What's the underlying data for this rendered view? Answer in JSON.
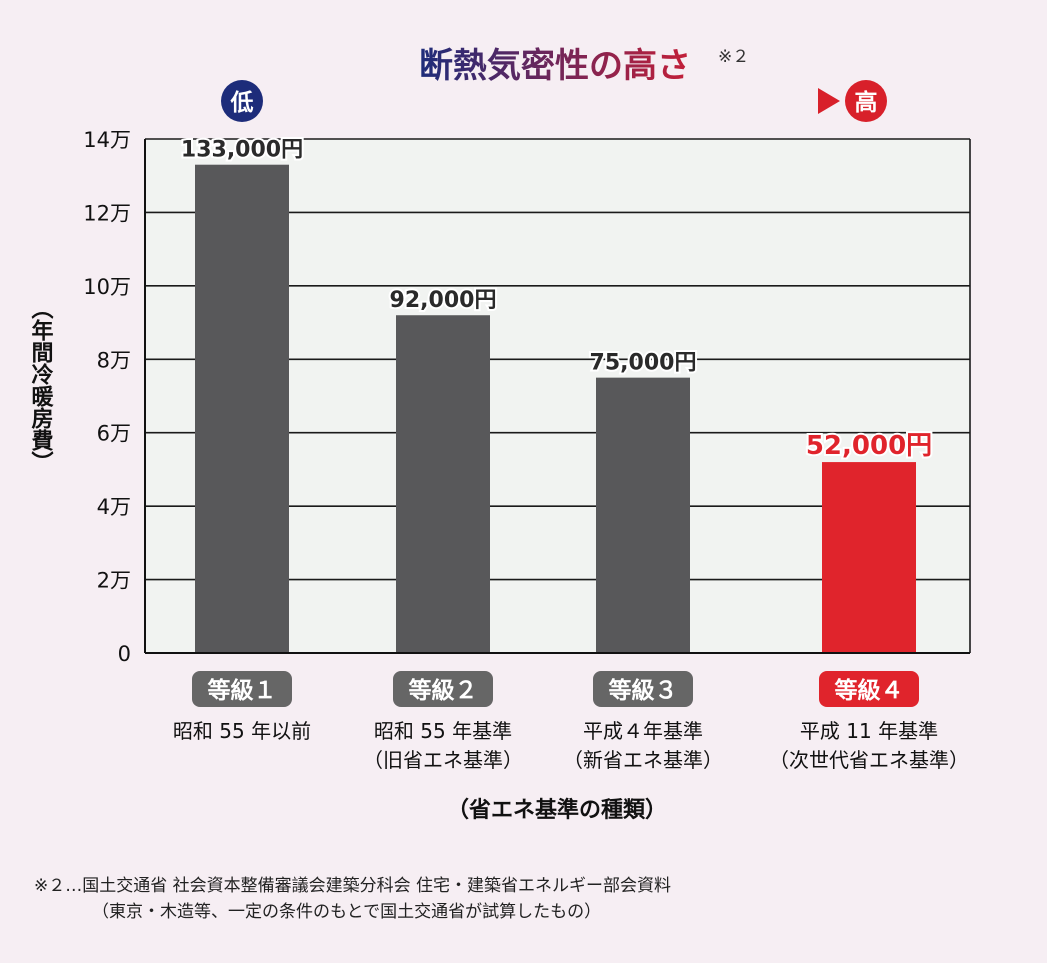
{
  "header": {
    "title": "断熱気密性の高さ",
    "title_note": "※２",
    "low_label": "低",
    "high_label": "高",
    "colors": {
      "low": "#1d2c7a",
      "high": "#d8202a"
    }
  },
  "chart_data": {
    "type": "bar",
    "ylabel": "（年間冷暖房費）",
    "xlabel": "（省エネ基準の種類）",
    "ylim": [
      0,
      140000
    ],
    "yticks": [
      {
        "value": 0,
        "label": "0"
      },
      {
        "value": 20000,
        "label": "2万"
      },
      {
        "value": 40000,
        "label": "4万"
      },
      {
        "value": 60000,
        "label": "6万"
      },
      {
        "value": 80000,
        "label": "8万"
      },
      {
        "value": 100000,
        "label": "10万"
      },
      {
        "value": 120000,
        "label": "12万"
      },
      {
        "value": 140000,
        "label": "14万"
      }
    ],
    "grid": true,
    "categories": [
      {
        "grade": "等級１",
        "line1": "昭和 55 年以前",
        "line2": ""
      },
      {
        "grade": "等級２",
        "line1": "昭和 55 年基準",
        "line2": "（旧省エネ基準）"
      },
      {
        "grade": "等級３",
        "line1": "平成４年基準",
        "line2": "（新省エネ基準）"
      },
      {
        "grade": "等級４",
        "line1": "平成 11 年基準",
        "line2": "（次世代省エネ基準）"
      }
    ],
    "values": [
      133000,
      92000,
      75000,
      52000
    ],
    "data_labels": [
      "133,000円",
      "92,000円",
      "75,000円",
      "52,000円"
    ],
    "highlight_index": 3,
    "colors": {
      "bar": "#58585a",
      "highlight": "#e0242c",
      "grade_badge": "#666666"
    }
  },
  "footnote": {
    "line1": "※２…国土交通省 社会資本整備審議会建築分科会 住宅・建築省エネルギー部会資料",
    "line2": "（東京・木造等、一定の条件のもとで国土交通省が試算したもの）"
  }
}
